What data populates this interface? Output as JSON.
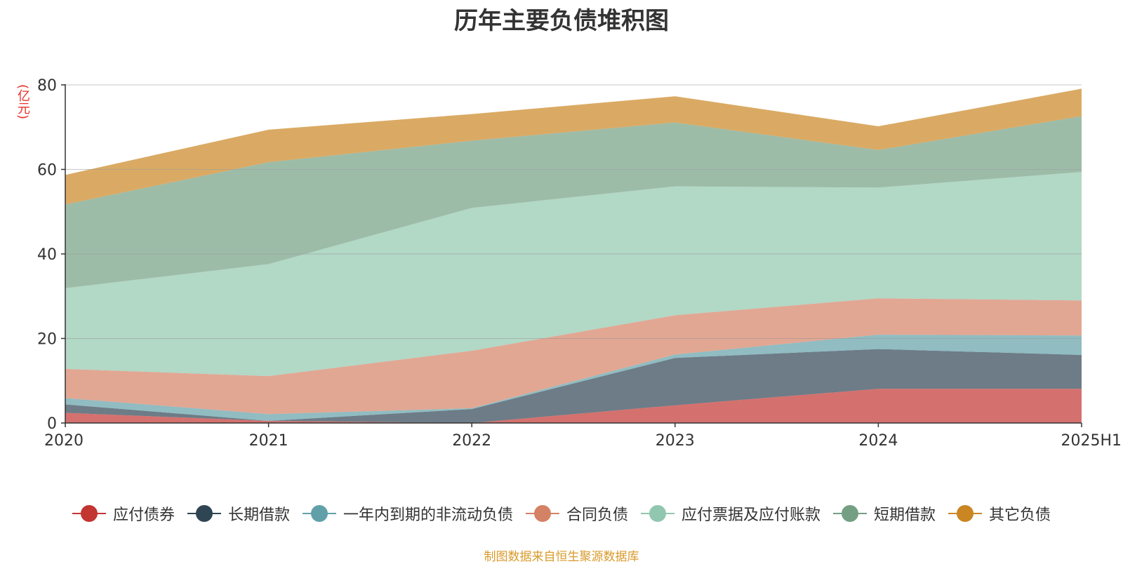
{
  "chart_data": {
    "type": "area",
    "stacked": true,
    "title": "历年主要负债堆积图",
    "ylabel": "(亿元)",
    "source": "制图数据来自恒生聚源数据库",
    "categories": [
      "2020",
      "2021",
      "2022",
      "2023",
      "2024",
      "2025H1"
    ],
    "ylim": [
      0,
      80
    ],
    "yticks": [
      0,
      20,
      40,
      60,
      80
    ],
    "legend_position": "bottom",
    "series": [
      {
        "name": "应付债券",
        "color": "#c23531",
        "values": [
          2.4,
          0.5,
          0.0,
          4.2,
          8.1,
          8.1
        ]
      },
      {
        "name": "长期借款",
        "color": "#2f4554",
        "values": [
          2.0,
          0.0,
          3.3,
          11.2,
          9.4,
          8.0
        ]
      },
      {
        "name": "一年内到期的非流动负债",
        "color": "#61a0a8",
        "values": [
          1.5,
          1.6,
          0.2,
          0.8,
          3.4,
          4.6
        ]
      },
      {
        "name": "合同负债",
        "color": "#d48265",
        "values": [
          6.9,
          9.0,
          13.6,
          9.3,
          8.6,
          8.3
        ]
      },
      {
        "name": "应付票据及应付账款",
        "color": "#91c7ae",
        "values": [
          19.1,
          26.5,
          33.8,
          30.5,
          26.2,
          30.4
        ]
      },
      {
        "name": "短期借款",
        "color": "#749f83",
        "values": [
          19.8,
          24.1,
          15.9,
          15.1,
          8.9,
          13.2
        ]
      },
      {
        "name": "其它负债",
        "color": "#ca8622",
        "values": [
          7.0,
          7.7,
          6.3,
          6.2,
          5.6,
          6.5
        ]
      }
    ]
  }
}
